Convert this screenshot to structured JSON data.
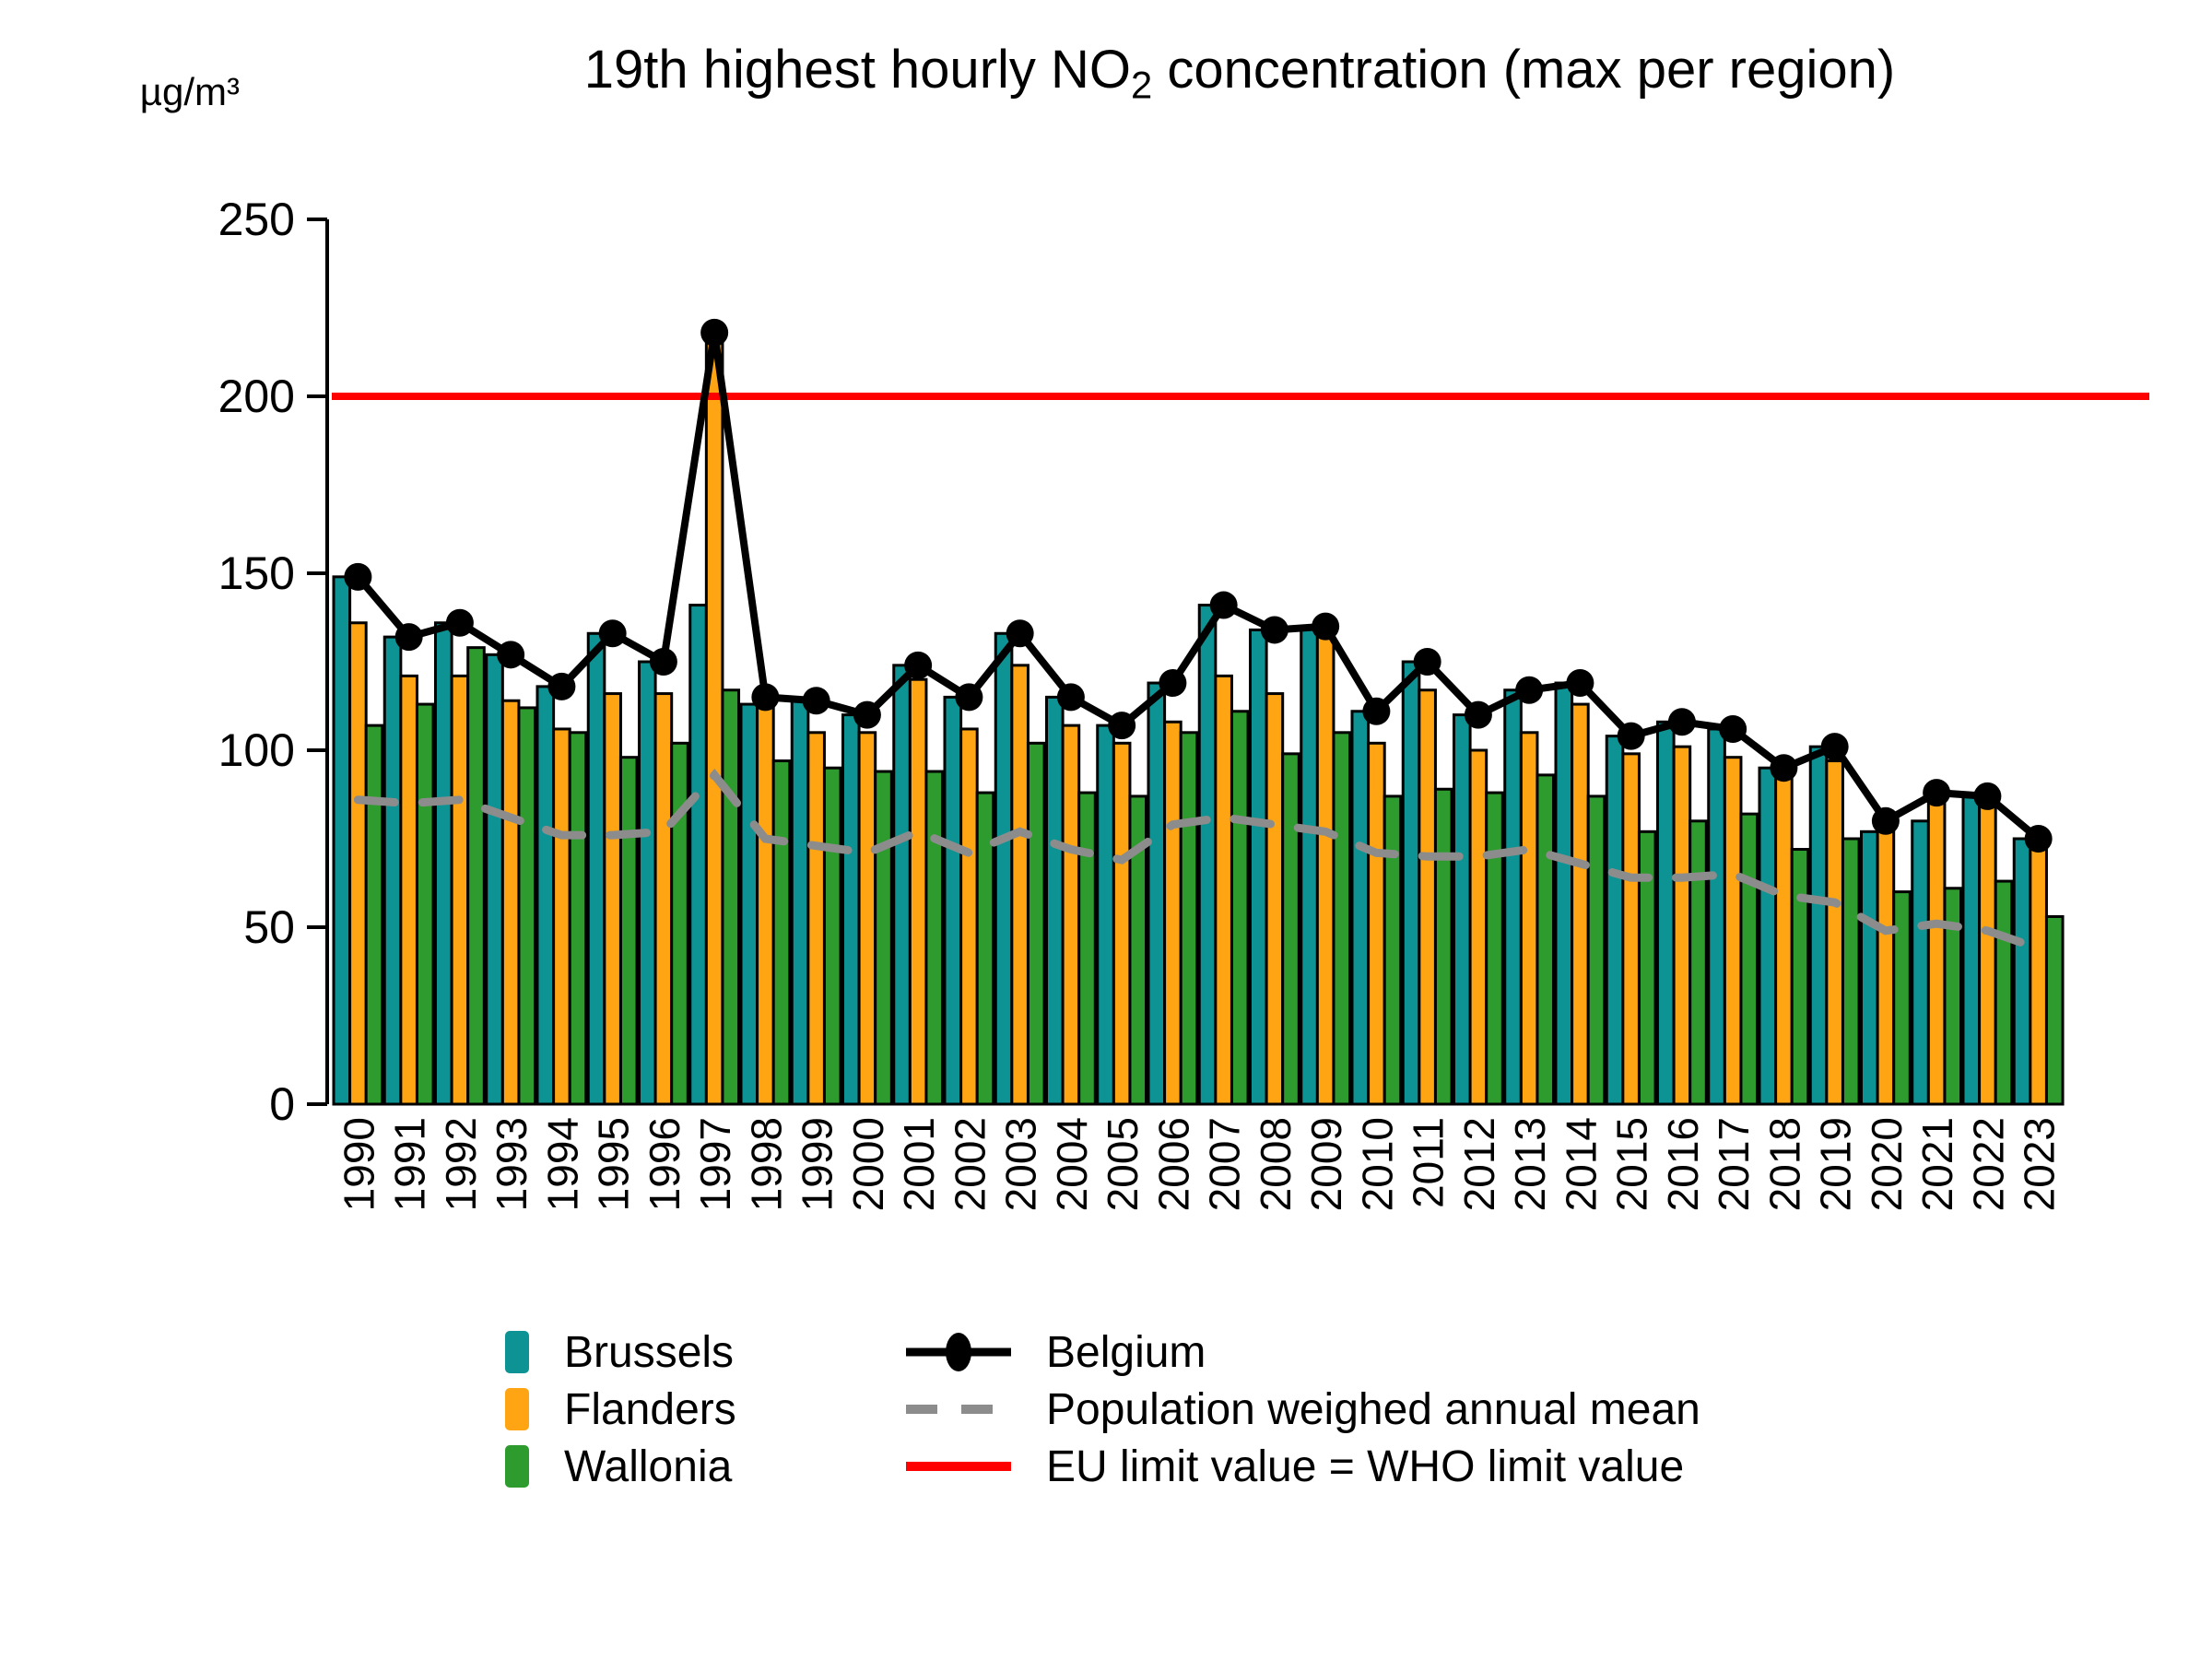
{
  "title": {
    "prefix": "19th highest hourly NO",
    "subscript": "2",
    "suffix": " concentration (max per region)"
  },
  "y_axis": {
    "unit": "µg/m³",
    "ticks": [
      0,
      50,
      100,
      150,
      200,
      250
    ],
    "max": 250
  },
  "legend": {
    "bars": [
      {
        "label": "Brussels",
        "color": "#0E9394"
      },
      {
        "label": "Flanders",
        "color": "#FFA514"
      },
      {
        "label": "Wallonia",
        "color": "#2E9B2E"
      }
    ],
    "lines": [
      {
        "label": "Belgium",
        "style": "solid-point",
        "color": "#000000"
      },
      {
        "label": "Population weighed annual mean",
        "style": "dashed",
        "color": "#8C8C8C"
      },
      {
        "label": "EU limit value = WHO limit value",
        "style": "solid",
        "color": "#FF0000"
      }
    ]
  },
  "chart_data": {
    "type": "bar",
    "title": "19th highest hourly NO2 concentration (max per region)",
    "xlabel": "",
    "ylabel": "µg/m³",
    "ylim": [
      0,
      250
    ],
    "yticks": [
      0,
      50,
      100,
      150,
      200,
      250
    ],
    "grid": false,
    "legend_position": "bottom",
    "categories": [
      1990,
      1991,
      1992,
      1993,
      1994,
      1995,
      1996,
      1997,
      1998,
      1999,
      2000,
      2001,
      2002,
      2003,
      2004,
      2005,
      2006,
      2007,
      2008,
      2009,
      2010,
      2011,
      2012,
      2013,
      2014,
      2015,
      2016,
      2017,
      2018,
      2019,
      2020,
      2021,
      2022,
      2023
    ],
    "series": [
      {
        "name": "Brussels",
        "type": "bar",
        "color": "#0E9394",
        "values": [
          149,
          132,
          136,
          127,
          118,
          133,
          125,
          141,
          113,
          114,
          110,
          124,
          115,
          133,
          115,
          107,
          119,
          141,
          134,
          135,
          111,
          125,
          110,
          117,
          119,
          104,
          108,
          106,
          95,
          101,
          77,
          80,
          87,
          75
        ]
      },
      {
        "name": "Flanders",
        "type": "bar",
        "color": "#FFA514",
        "values": [
          136,
          121,
          121,
          114,
          106,
          116,
          116,
          218,
          115,
          105,
          105,
          120,
          106,
          124,
          107,
          102,
          108,
          121,
          116,
          132,
          102,
          117,
          100,
          105,
          113,
          99,
          101,
          98,
          93,
          97,
          80,
          88,
          85,
          72
        ]
      },
      {
        "name": "Wallonia",
        "type": "bar",
        "color": "#2E9B2E",
        "values": [
          107,
          113,
          129,
          112,
          105,
          98,
          102,
          117,
          97,
          95,
          94,
          94,
          88,
          102,
          88,
          87,
          105,
          111,
          99,
          105,
          87,
          89,
          88,
          93,
          87,
          77,
          80,
          82,
          72,
          75,
          60,
          61,
          63,
          53
        ]
      },
      {
        "name": "Belgium",
        "type": "line-points",
        "color": "#000000",
        "values": [
          149,
          132,
          136,
          127,
          118,
          133,
          125,
          218,
          115,
          114,
          110,
          124,
          115,
          133,
          115,
          107,
          119,
          141,
          134,
          135,
          111,
          125,
          110,
          117,
          119,
          104,
          108,
          106,
          95,
          101,
          80,
          88,
          87,
          75
        ]
      },
      {
        "name": "Population weighed annual mean",
        "type": "dashed-line",
        "color": "#8C8C8C",
        "values": [
          86,
          85,
          86,
          81,
          76,
          76,
          77,
          93,
          75,
          73,
          71,
          77,
          71,
          77,
          72,
          69,
          79,
          81,
          79,
          77,
          71,
          70,
          70,
          72,
          68,
          64,
          64,
          65,
          59,
          57,
          49,
          51,
          49,
          44
        ]
      },
      {
        "name": "EU limit value = WHO limit value",
        "type": "hline",
        "color": "#FF0000",
        "value": 200
      }
    ]
  }
}
